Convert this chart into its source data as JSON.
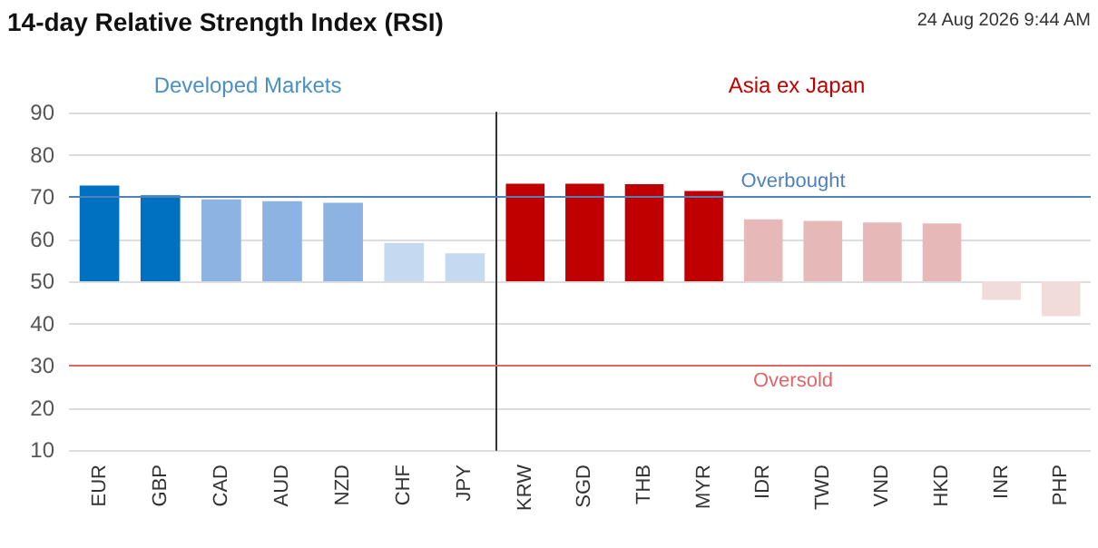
{
  "chart_data": [
    {
      "type": "bar",
      "title": "14-day Relative Strength Index (RSI)",
      "subtitle": "Developed Markets",
      "annotations": [
        "24 Aug 2026 9:44 AM"
      ],
      "categories": [
        "EUR",
        "GBP",
        "CAD",
        "AUD",
        "NZD",
        "CHF",
        "JPY"
      ],
      "base": [
        50,
        50,
        50,
        50,
        50,
        50,
        50
      ],
      "values": [
        22.7,
        20.4,
        19.4,
        19.0,
        18.6,
        9.1,
        6.6
      ],
      "colors": [
        "#0070c0",
        "#0070c0",
        "#8db3e2",
        "#8db3e2",
        "#8db3e2",
        "#c5d9f1",
        "#c5d9f1"
      ],
      "ylim": [
        10,
        90
      ],
      "yticks": [
        10,
        20,
        30,
        40,
        50,
        60,
        70,
        80,
        90
      ],
      "ref_lines": [
        {
          "axis": "y",
          "value": 70,
          "color": "#4f81bd"
        },
        {
          "axis": "y",
          "value": 30,
          "color": "#e06666"
        }
      ],
      "grid": "y"
    },
    {
      "type": "bar",
      "subtitle": "Asia ex Japan",
      "categories": [
        "KRW",
        "SGD",
        "THB",
        "MYR",
        "IDR",
        "TWD",
        "VND",
        "HKD",
        "INR",
        "PHP"
      ],
      "base": [
        50,
        50,
        50,
        50,
        50,
        50,
        50,
        50,
        50,
        50
      ],
      "values": [
        23.1,
        23.1,
        23.0,
        21.4,
        14.7,
        14.3,
        13.9,
        13.7,
        -4.4,
        -8.3
      ],
      "colors": [
        "#c00000",
        "#c00000",
        "#c00000",
        "#c00000",
        "#e6b9b8",
        "#e6b9b8",
        "#e6b9b8",
        "#e6b9b8",
        "#f2dcdb",
        "#f2dcdb"
      ],
      "ylim": [
        10,
        90
      ],
      "yticks": [
        10,
        20,
        30,
        40,
        50,
        60,
        70,
        80,
        90
      ],
      "tick_labels": "x",
      "ref_lines": [
        {
          "axis": "y",
          "value": 70,
          "label": "Overbought",
          "color": "#4f81bd"
        },
        {
          "axis": "y",
          "value": 30,
          "label": "Oversold",
          "color": "#e06666"
        }
      ],
      "grid": "y"
    }
  ]
}
